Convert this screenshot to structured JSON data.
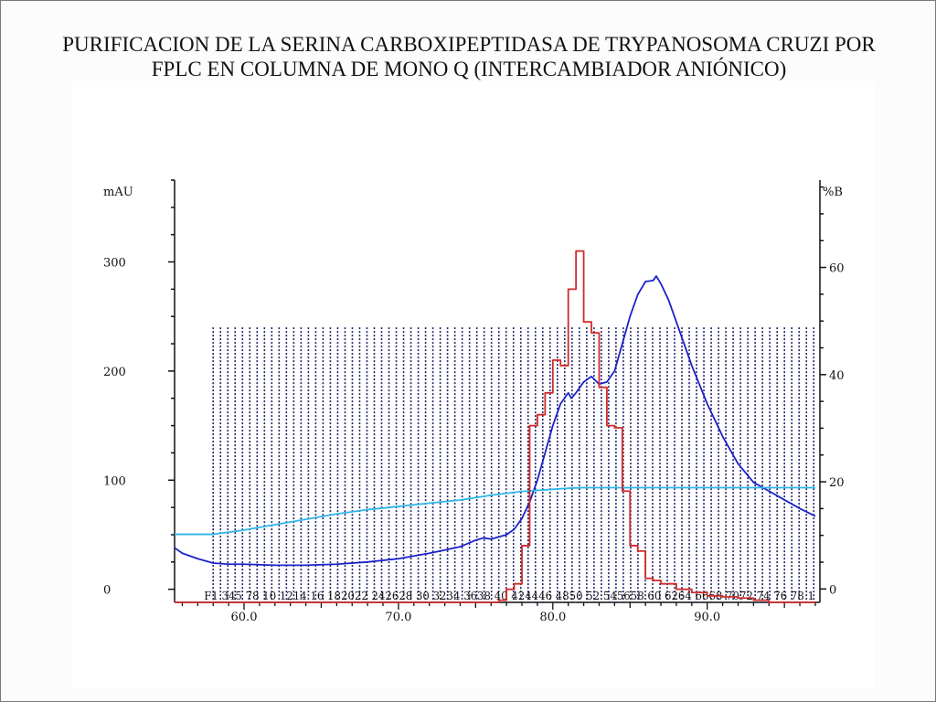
{
  "title": {
    "line1": "PURIFICACION DE LA SERINA CARBOXIPEPTIDASA DE TRYPANOSOMA CRUZI POR",
    "line2": "FPLC EN COLUMNA DE MONO Q (INTERCAMBIADOR ANIÓNICO)"
  },
  "chart_data": {
    "type": "line",
    "left_axis": {
      "label": "mAU",
      "ticks": [
        0,
        100,
        200,
        300
      ],
      "range": [
        -12,
        375
      ]
    },
    "right_axis": {
      "label": "%B",
      "ticks": [
        0,
        20,
        40,
        60
      ],
      "range": [
        -2.5,
        76.3
      ]
    },
    "x_axis": {
      "ticks": [
        60,
        70,
        80,
        90
      ],
      "tick_labels": [
        "60.0",
        "70.0",
        "80.0",
        "90.0"
      ],
      "range": [
        55.5,
        97.3
      ]
    },
    "fraction_axis": {
      "start": 58,
      "end": 96.9,
      "count": 83,
      "height_mAU": 240,
      "label_text": "F1 345  78  10 1214 16 182022 242628 30 3234 3638 40 424446 4850 52 545658 60 6264 6668 7072 74 76 78 1"
    },
    "series": [
      {
        "color": "#1c22c8",
        "x": [
          55.5,
          56,
          57,
          58,
          59,
          60,
          62,
          64,
          66,
          68,
          70,
          72,
          73,
          74,
          75,
          75.5,
          76,
          77,
          77.5,
          78,
          78.5,
          79,
          79.5,
          80,
          80.5,
          81,
          81.2,
          81.5,
          82,
          82.5,
          83,
          83.5,
          84,
          84.5,
          85,
          85.5,
          86,
          86.5,
          86.7,
          87,
          87.5,
          88,
          88.5,
          89,
          90,
          91,
          92,
          93,
          94,
          95,
          96,
          97
        ],
        "values": [
          38,
          33,
          28,
          24,
          23,
          23,
          22,
          22,
          23,
          25,
          28,
          33,
          36,
          39,
          45,
          47,
          46,
          50,
          55,
          65,
          80,
          100,
          125,
          150,
          170,
          180,
          175,
          180,
          190,
          195,
          188,
          190,
          200,
          225,
          250,
          270,
          282,
          283,
          287,
          280,
          265,
          245,
          225,
          205,
          170,
          140,
          115,
          98,
          90,
          82,
          74,
          67
        ]
      },
      {
        "color": "#2eb7e8",
        "axis": "right",
        "x": [
          55.5,
          58,
          60,
          62,
          64,
          66,
          68,
          70,
          72,
          74,
          76,
          78,
          80,
          81,
          82,
          84,
          86,
          88,
          90,
          92,
          94,
          96,
          97
        ],
        "values": [
          10.2,
          10.2,
          11,
          12,
          13,
          14,
          14.8,
          15.4,
          16,
          16.6,
          17.5,
          18.2,
          18.6,
          18.8,
          18.9,
          18.9,
          18.9,
          18.9,
          18.9,
          18.9,
          18.9,
          18.9,
          18.9
        ]
      },
      {
        "color": "#d12a2a",
        "type": "step",
        "x": [
          55.5,
          76.5,
          77,
          77.5,
          78,
          78.5,
          79,
          79.5,
          80,
          80.5,
          81,
          81.5,
          82,
          82.5,
          83,
          83.5,
          84,
          84.5,
          85,
          85.5,
          86,
          86.5,
          87,
          88,
          89,
          90,
          91,
          92,
          93,
          94,
          95,
          96,
          97
        ],
        "values": [
          -12,
          -10,
          0,
          5,
          40,
          150,
          160,
          180,
          210,
          205,
          275,
          310,
          245,
          235,
          185,
          150,
          148,
          90,
          40,
          35,
          10,
          8,
          5,
          0,
          -3,
          -6,
          -7,
          -8,
          -10,
          -12,
          -12,
          -12,
          -12
        ]
      }
    ]
  }
}
